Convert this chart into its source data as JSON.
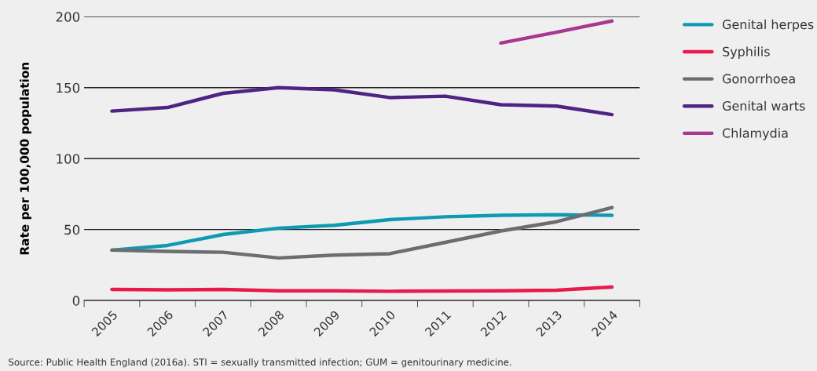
{
  "chart_data": {
    "type": "line",
    "ylabel": "Rate per 100,000 population",
    "categories": [
      "2005",
      "2006",
      "2007",
      "2008",
      "2009",
      "2010",
      "2011",
      "2012",
      "2013",
      "2014"
    ],
    "series": [
      {
        "name": "Genital herpes",
        "color": "#0e9bb2",
        "values": [
          35.5,
          38.8,
          46.5,
          51,
          53,
          57,
          59,
          60,
          60.5,
          60
        ]
      },
      {
        "name": "Syphilis",
        "color": "#e8194b",
        "values": [
          7.8,
          7.5,
          7.8,
          6.8,
          6.8,
          6.5,
          6.7,
          6.8,
          7.3,
          9.5
        ]
      },
      {
        "name": "Gonorrhoea",
        "color": "#6b6d70",
        "values": [
          35.5,
          34.6,
          34,
          30,
          32,
          33,
          41,
          49,
          55.5,
          65.5
        ]
      },
      {
        "name": "Genital warts",
        "color": "#4e2383",
        "values": [
          133.5,
          136,
          146,
          150,
          148.5,
          143,
          144,
          138,
          137,
          131
        ]
      },
      {
        "name": "Chlamydia",
        "color": "#a8378f",
        "values": [
          null,
          null,
          null,
          null,
          null,
          null,
          null,
          181.4,
          189,
          197
        ]
      }
    ],
    "ylim": [
      0,
      200
    ],
    "yticks": [
      0,
      50,
      100,
      150,
      200
    ],
    "grid": "y",
    "legend": "right",
    "marker": "none",
    "line_style": "solid",
    "annotations": [
      "Source: Public Health England (2016a). STI = sexually transmitted infection; GUM = genitourinary medicine."
    ]
  }
}
